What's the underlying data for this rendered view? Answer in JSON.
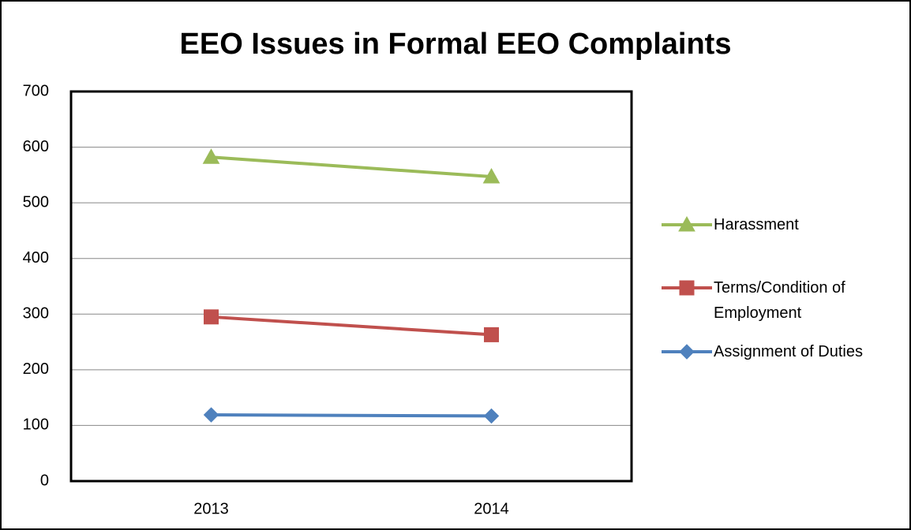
{
  "chart_data": {
    "type": "line",
    "title": "EEO Issues in Formal EEO Complaints",
    "categories": [
      "2013",
      "2014"
    ],
    "series": [
      {
        "name": "Harassment",
        "color": "#9bbb59",
        "marker": "triangle",
        "values": [
          582,
          547
        ]
      },
      {
        "name": "Terms/Condition of Employment",
        "color": "#c0504d",
        "marker": "square",
        "values": [
          295,
          263
        ]
      },
      {
        "name": "Assignment of Duties",
        "color": "#4f81bd",
        "marker": "diamond",
        "values": [
          119,
          117
        ]
      }
    ],
    "ylim": [
      0,
      700
    ],
    "yticks": [
      0,
      100,
      200,
      300,
      400,
      500,
      600,
      700
    ],
    "grid": true,
    "legend": "right"
  }
}
